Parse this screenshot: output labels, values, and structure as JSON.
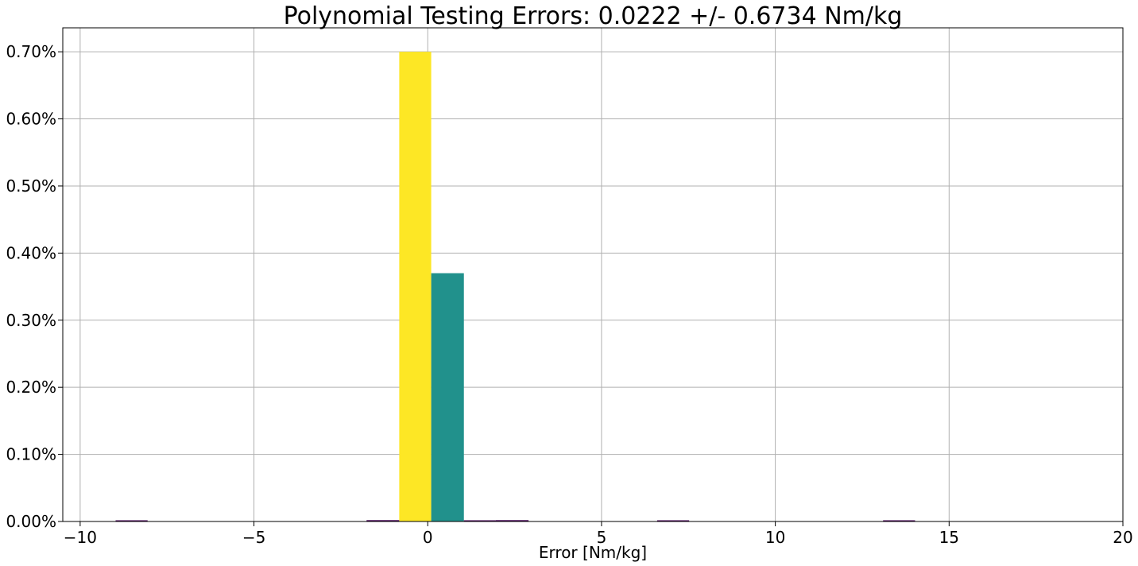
{
  "chart_data": {
    "type": "bar",
    "title": "Polynomial Testing Errors: 0.0222 +/- 0.6734 Nm/kg",
    "xlabel": "Error [Nm/kg]",
    "ylabel": "",
    "xlim": [
      -10.5,
      20
    ],
    "ylim": [
      0,
      0.7357
    ],
    "grid": true,
    "x_ticks": [
      -10,
      -5,
      0,
      5,
      10,
      15,
      20
    ],
    "x_tick_labels": [
      "−10",
      "−5",
      "0",
      "5",
      "10",
      "15",
      "20"
    ],
    "y_ticks": [
      0,
      0.1,
      0.2,
      0.3,
      0.4,
      0.5,
      0.6,
      0.7
    ],
    "y_tick_labels": [
      "0.00%",
      "0.10%",
      "0.20%",
      "0.30%",
      "0.40%",
      "0.50%",
      "0.60%",
      "0.70%"
    ],
    "bars": [
      {
        "x_start": -8.98,
        "x_end": -8.06,
        "value": 0.001,
        "color": "#440154"
      },
      {
        "x_start": -1.76,
        "x_end": -0.82,
        "value": 0.002,
        "color": "#440154"
      },
      {
        "x_start": -0.82,
        "x_end": 0.1,
        "value": 0.7,
        "color": "#fde725"
      },
      {
        "x_start": 0.1,
        "x_end": 1.04,
        "value": 0.37,
        "color": "#21918c"
      },
      {
        "x_start": 1.04,
        "x_end": 1.96,
        "value": 0.001,
        "color": "#440154"
      },
      {
        "x_start": 1.96,
        "x_end": 2.9,
        "value": 0.002,
        "color": "#440154"
      },
      {
        "x_start": 6.6,
        "x_end": 7.52,
        "value": 0.001,
        "color": "#440154"
      },
      {
        "x_start": 13.1,
        "x_end": 14.02,
        "value": 0.001,
        "color": "#440154"
      }
    ]
  }
}
